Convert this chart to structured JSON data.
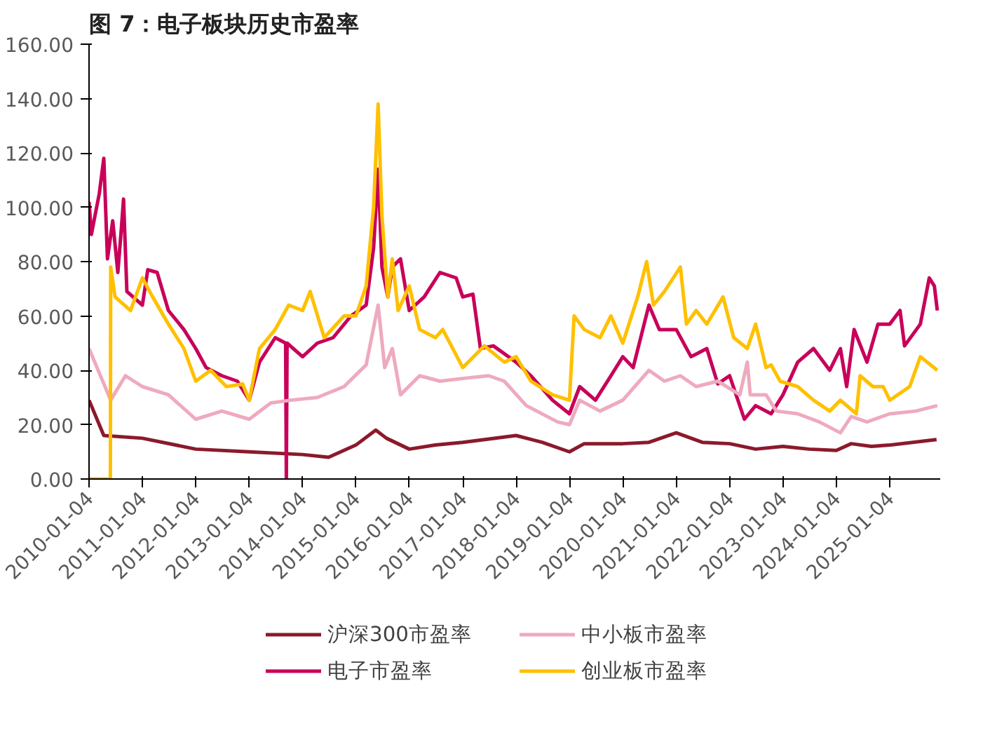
{
  "chart_data": {
    "type": "line",
    "title": "图 7：电子板块历史市盈率",
    "xlim": [
      "2010-01-04",
      "2025-12-15"
    ],
    "xticks": [
      "2010-01-04",
      "2011-01-04",
      "2012-01-04",
      "2013-01-04",
      "2014-01-04",
      "2015-01-04",
      "2016-01-04",
      "2017-01-04",
      "2018-01-04",
      "2019-01-04",
      "2020-01-04",
      "2021-01-04",
      "2022-01-04",
      "2023-01-04",
      "2024-01-04",
      "2025-01-04"
    ],
    "ylim": [
      0,
      160
    ],
    "yticks": [
      {
        "value": 0,
        "label": "0.00"
      },
      {
        "value": 20,
        "label": "20.00"
      },
      {
        "value": 40,
        "label": "40.00"
      },
      {
        "value": 60,
        "label": "60.00"
      },
      {
        "value": 80,
        "label": "80.00"
      },
      {
        "value": 100,
        "label": "100.00"
      },
      {
        "value": 120,
        "label": "120.00"
      },
      {
        "value": 140,
        "label": "140.00"
      },
      {
        "value": 160,
        "label": "160.00"
      }
    ],
    "grid": false,
    "legend": "bottom",
    "marker": "none",
    "line_style": "solid",
    "series": [
      {
        "name": "沪深300市盈率",
        "color": "#8b1a2b",
        "x": [
          "2010-01-04",
          "2010-04-15",
          "2011-01-04",
          "2012-01-04",
          "2013-01-04",
          "2014-01-04",
          "2014-07-01",
          "2015-01-04",
          "2015-05-20",
          "2015-08-01",
          "2016-01-04",
          "2016-07-01",
          "2017-01-04",
          "2018-01-04",
          "2018-07-01",
          "2019-01-04",
          "2019-04-15",
          "2020-01-04",
          "2020-07-01",
          "2021-01-04",
          "2021-07-01",
          "2022-01-04",
          "2022-07-01",
          "2023-01-04",
          "2023-07-01",
          "2024-01-04",
          "2024-04-15",
          "2024-09-01",
          "2025-01-04",
          "2025-11-20"
        ],
        "values": [
          29,
          16,
          15,
          11,
          10,
          9,
          8,
          12.5,
          18,
          15,
          11,
          12.5,
          13.5,
          16,
          13.5,
          10,
          13,
          13,
          13.5,
          17,
          13.5,
          13,
          11,
          12,
          11,
          10.5,
          13,
          12,
          12.5,
          14.5
        ]
      },
      {
        "name": "电子市盈率",
        "color": "#c8005a",
        "x": [
          "2010-01-04",
          "2010-01-20",
          "2010-03-15",
          "2010-04-15",
          "2010-05-10",
          "2010-06-15",
          "2010-07-20",
          "2010-08-10",
          "2010-08-28",
          "2010-09-20",
          "2011-01-04",
          "2011-02-10",
          "2011-04-15",
          "2011-07-01",
          "2011-10-15",
          "2012-01-04",
          "2012-03-15",
          "2012-07-01",
          "2012-10-15",
          "2013-01-04",
          "2013-03-15",
          "2013-07-01",
          "2013-09-10",
          "2013-09-15",
          "2013-09-20",
          "2014-01-04",
          "2014-04-15",
          "2014-08-01",
          "2014-12-01",
          "2015-03-15",
          "2015-05-05",
          "2015-06-05",
          "2015-07-01",
          "2015-08-10",
          "2015-09-10",
          "2015-11-05",
          "2016-01-04",
          "2016-04-15",
          "2016-08-01",
          "2016-11-20",
          "2017-01-04",
          "2017-03-15",
          "2017-05-05",
          "2017-08-01",
          "2018-01-04",
          "2018-04-15",
          "2018-09-10",
          "2019-01-04",
          "2019-03-15",
          "2019-07-01",
          "2019-10-15",
          "2020-01-04",
          "2020-03-15",
          "2020-07-01",
          "2020-09-10",
          "2021-01-04",
          "2021-04-15",
          "2021-08-01",
          "2021-10-15",
          "2022-01-04",
          "2022-04-15",
          "2022-07-01",
          "2022-10-15",
          "2023-01-04",
          "2023-04-15",
          "2023-08-01",
          "2023-11-20",
          "2024-02-01",
          "2024-03-15",
          "2024-05-05",
          "2024-08-01",
          "2024-10-15",
          "2025-01-04",
          "2025-03-15",
          "2025-04-15",
          "2025-08-01",
          "2025-10-01",
          "2025-11-05",
          "2025-11-25"
        ],
        "values": [
          102,
          90,
          105,
          118,
          81,
          95,
          76,
          90,
          103,
          69,
          64,
          77,
          76,
          62,
          55,
          48,
          41,
          38,
          36,
          29,
          43,
          52,
          50,
          0,
          50,
          45,
          50,
          52,
          60,
          64,
          85,
          114,
          78,
          67,
          78,
          81,
          62,
          67,
          76,
          74,
          67,
          68,
          48,
          49,
          43,
          38,
          29,
          24,
          34,
          29,
          38,
          45,
          41,
          64,
          55,
          55,
          45,
          48,
          35,
          38,
          22,
          27,
          24,
          31,
          43,
          48,
          40,
          48,
          34,
          55,
          43,
          57,
          57,
          62,
          49,
          57,
          74,
          71,
          62
        ]
      },
      {
        "name": "中小板市盈率",
        "color": "#eeaabe",
        "x": [
          "2010-01-04",
          "2010-06-01",
          "2010-09-10",
          "2011-01-04",
          "2011-07-01",
          "2012-01-04",
          "2012-07-01",
          "2013-01-04",
          "2013-06-01",
          "2013-10-15",
          "2014-04-15",
          "2014-10-15",
          "2015-03-15",
          "2015-06-05",
          "2015-07-20",
          "2015-09-10",
          "2015-11-05",
          "2016-03-15",
          "2016-08-01",
          "2017-01-04",
          "2017-07-01",
          "2017-10-15",
          "2018-03-15",
          "2018-10-15",
          "2019-01-04",
          "2019-03-15",
          "2019-08-01",
          "2020-01-04",
          "2020-07-01",
          "2020-10-15",
          "2021-02-01",
          "2021-05-20",
          "2021-10-15",
          "2022-03-15",
          "2022-05-05",
          "2022-05-25",
          "2022-09-10",
          "2022-11-20",
          "2023-04-15",
          "2023-09-10",
          "2024-02-01",
          "2024-04-15",
          "2024-08-01",
          "2025-01-04",
          "2025-07-01",
          "2025-11-25"
        ],
        "values": [
          48,
          29,
          38,
          34,
          31,
          22,
          25,
          22,
          28,
          29,
          30,
          34,
          42,
          64,
          41,
          48,
          31,
          38,
          36,
          37,
          38,
          36,
          27,
          21,
          20,
          29,
          25,
          29,
          40,
          36,
          38,
          34,
          36,
          31,
          43,
          31,
          31,
          25,
          24,
          21,
          17,
          23,
          21,
          24,
          25,
          27
        ]
      },
      {
        "name": "创业板市盈率",
        "color": "#ffc000",
        "x": [
          "2010-01-04",
          "2010-05-30",
          "2010-06-01",
          "2010-07-01",
          "2010-10-15",
          "2011-01-04",
          "2011-03-15",
          "2011-07-01",
          "2011-10-15",
          "2012-01-04",
          "2012-04-15",
          "2012-08-01",
          "2012-11-20",
          "2013-01-04",
          "2013-03-15",
          "2013-07-01",
          "2013-10-01",
          "2014-01-04",
          "2014-02-25",
          "2014-06-01",
          "2014-10-15",
          "2015-01-04",
          "2015-03-15",
          "2015-05-05",
          "2015-06-05",
          "2015-07-01",
          "2015-08-10",
          "2015-09-10",
          "2015-10-20",
          "2016-01-04",
          "2016-03-15",
          "2016-07-01",
          "2016-08-20",
          "2017-01-04",
          "2017-06-01",
          "2017-10-15",
          "2018-01-04",
          "2018-04-15",
          "2018-09-10",
          "2019-01-04",
          "2019-02-05",
          "2019-04-15",
          "2019-08-01",
          "2019-10-15",
          "2020-01-04",
          "2020-04-15",
          "2020-06-15",
          "2020-08-01",
          "2020-10-15",
          "2021-02-01",
          "2021-03-15",
          "2021-05-20",
          "2021-08-01",
          "2021-11-20",
          "2022-02-01",
          "2022-05-05",
          "2022-07-01",
          "2022-09-10",
          "2022-10-15",
          "2022-12-15",
          "2023-04-15",
          "2023-08-01",
          "2023-11-20",
          "2024-02-01",
          "2024-05-20",
          "2024-06-15",
          "2024-09-10",
          "2024-11-20",
          "2025-01-04",
          "2025-05-20",
          "2025-08-01",
          "2025-11-25"
        ],
        "values": [
          0,
          0,
          78,
          67,
          62,
          74,
          67,
          57,
          48,
          36,
          40,
          34,
          35,
          29,
          48,
          55,
          64,
          62,
          69,
          52,
          60,
          60,
          71,
          100,
          138,
          97,
          67,
          81,
          62,
          71,
          55,
          52,
          55,
          41,
          49,
          43,
          45,
          36,
          31,
          29,
          60,
          55,
          52,
          60,
          50,
          67,
          80,
          64,
          69,
          78,
          57,
          62,
          57,
          67,
          52,
          48,
          57,
          41,
          42,
          36,
          34,
          29,
          25,
          29,
          24,
          38,
          34,
          34,
          29,
          34,
          45,
          40
        ]
      }
    ]
  }
}
